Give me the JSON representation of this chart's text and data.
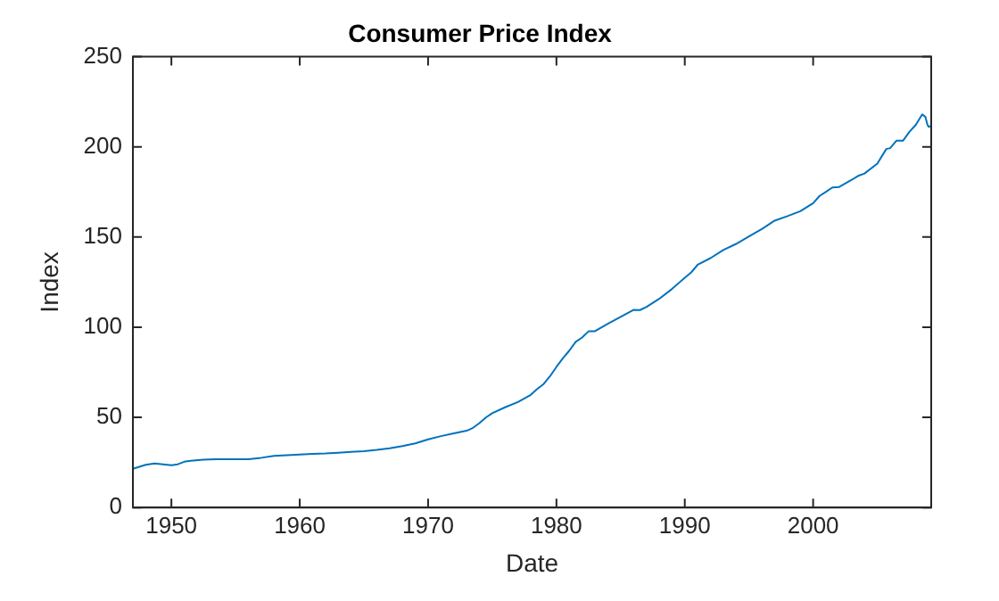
{
  "chart_data": {
    "type": "line",
    "title": "Consumer Price Index",
    "xlabel": "Date",
    "ylabel": "Index",
    "x": [
      1947.0,
      1948.0,
      1948.7,
      1949.5,
      1950.0,
      1950.5,
      1951.0,
      1951.5,
      1952.5,
      1953.5,
      1955.0,
      1956.0,
      1957.0,
      1958.0,
      1959.0,
      1960.0,
      1961.0,
      1962.0,
      1963.0,
      1964.0,
      1965.0,
      1966.0,
      1967.0,
      1968.0,
      1969.0,
      1970.0,
      1971.0,
      1972.0,
      1973.0,
      1973.5,
      1974.0,
      1974.5,
      1975.0,
      1976.0,
      1977.0,
      1978.0,
      1978.5,
      1979.0,
      1979.5,
      1980.0,
      1980.5,
      1981.0,
      1981.5,
      1982.0,
      1982.5,
      1983.0,
      1984.0,
      1985.0,
      1986.0,
      1986.5,
      1987.0,
      1988.0,
      1989.0,
      1990.0,
      1990.5,
      1991.0,
      1992.0,
      1993.0,
      1994.0,
      1995.0,
      1996.0,
      1997.0,
      1998.0,
      1999.0,
      2000.0,
      2000.5,
      2001.0,
      2001.5,
      2002.0,
      2003.0,
      2003.5,
      2004.0,
      2005.0,
      2005.7,
      2006.0,
      2006.5,
      2007.0,
      2007.5,
      2008.0,
      2008.5,
      2008.75,
      2008.9,
      2009.0,
      2009.2
    ],
    "series": [
      {
        "color": "#0072bd",
        "values": [
          21.5,
          23.7,
          24.4,
          23.8,
          23.5,
          24.0,
          25.4,
          25.9,
          26.5,
          26.8,
          26.8,
          26.8,
          27.6,
          28.6,
          29.0,
          29.4,
          29.8,
          30.0,
          30.4,
          30.9,
          31.3,
          32.0,
          32.9,
          34.1,
          35.6,
          37.8,
          39.6,
          41.1,
          42.6,
          44.2,
          46.8,
          49.9,
          52.3,
          55.6,
          58.5,
          62.5,
          65.7,
          68.5,
          72.8,
          78.0,
          82.7,
          87.0,
          91.9,
          94.3,
          97.7,
          97.8,
          101.9,
          105.7,
          109.6,
          109.5,
          111.2,
          115.7,
          121.2,
          127.4,
          130.4,
          134.6,
          138.3,
          142.8,
          146.2,
          150.3,
          154.4,
          159.1,
          161.6,
          164.3,
          168.8,
          172.8,
          175.1,
          177.5,
          177.7,
          181.7,
          183.9,
          185.2,
          190.7,
          198.8,
          199.3,
          203.5,
          203.4,
          208.3,
          212.2,
          218.0,
          216.6,
          212.4,
          211.1,
          211.7
        ]
      }
    ],
    "xlim": [
      1947,
      2009.2
    ],
    "xticks": [
      1950,
      1960,
      1970,
      1980,
      1990,
      2000
    ],
    "ylim": [
      0,
      250
    ],
    "yticks": [
      0,
      50,
      100,
      150,
      200,
      250
    ],
    "grid": false,
    "legend": false,
    "marker": "none",
    "line_style": "solid"
  }
}
